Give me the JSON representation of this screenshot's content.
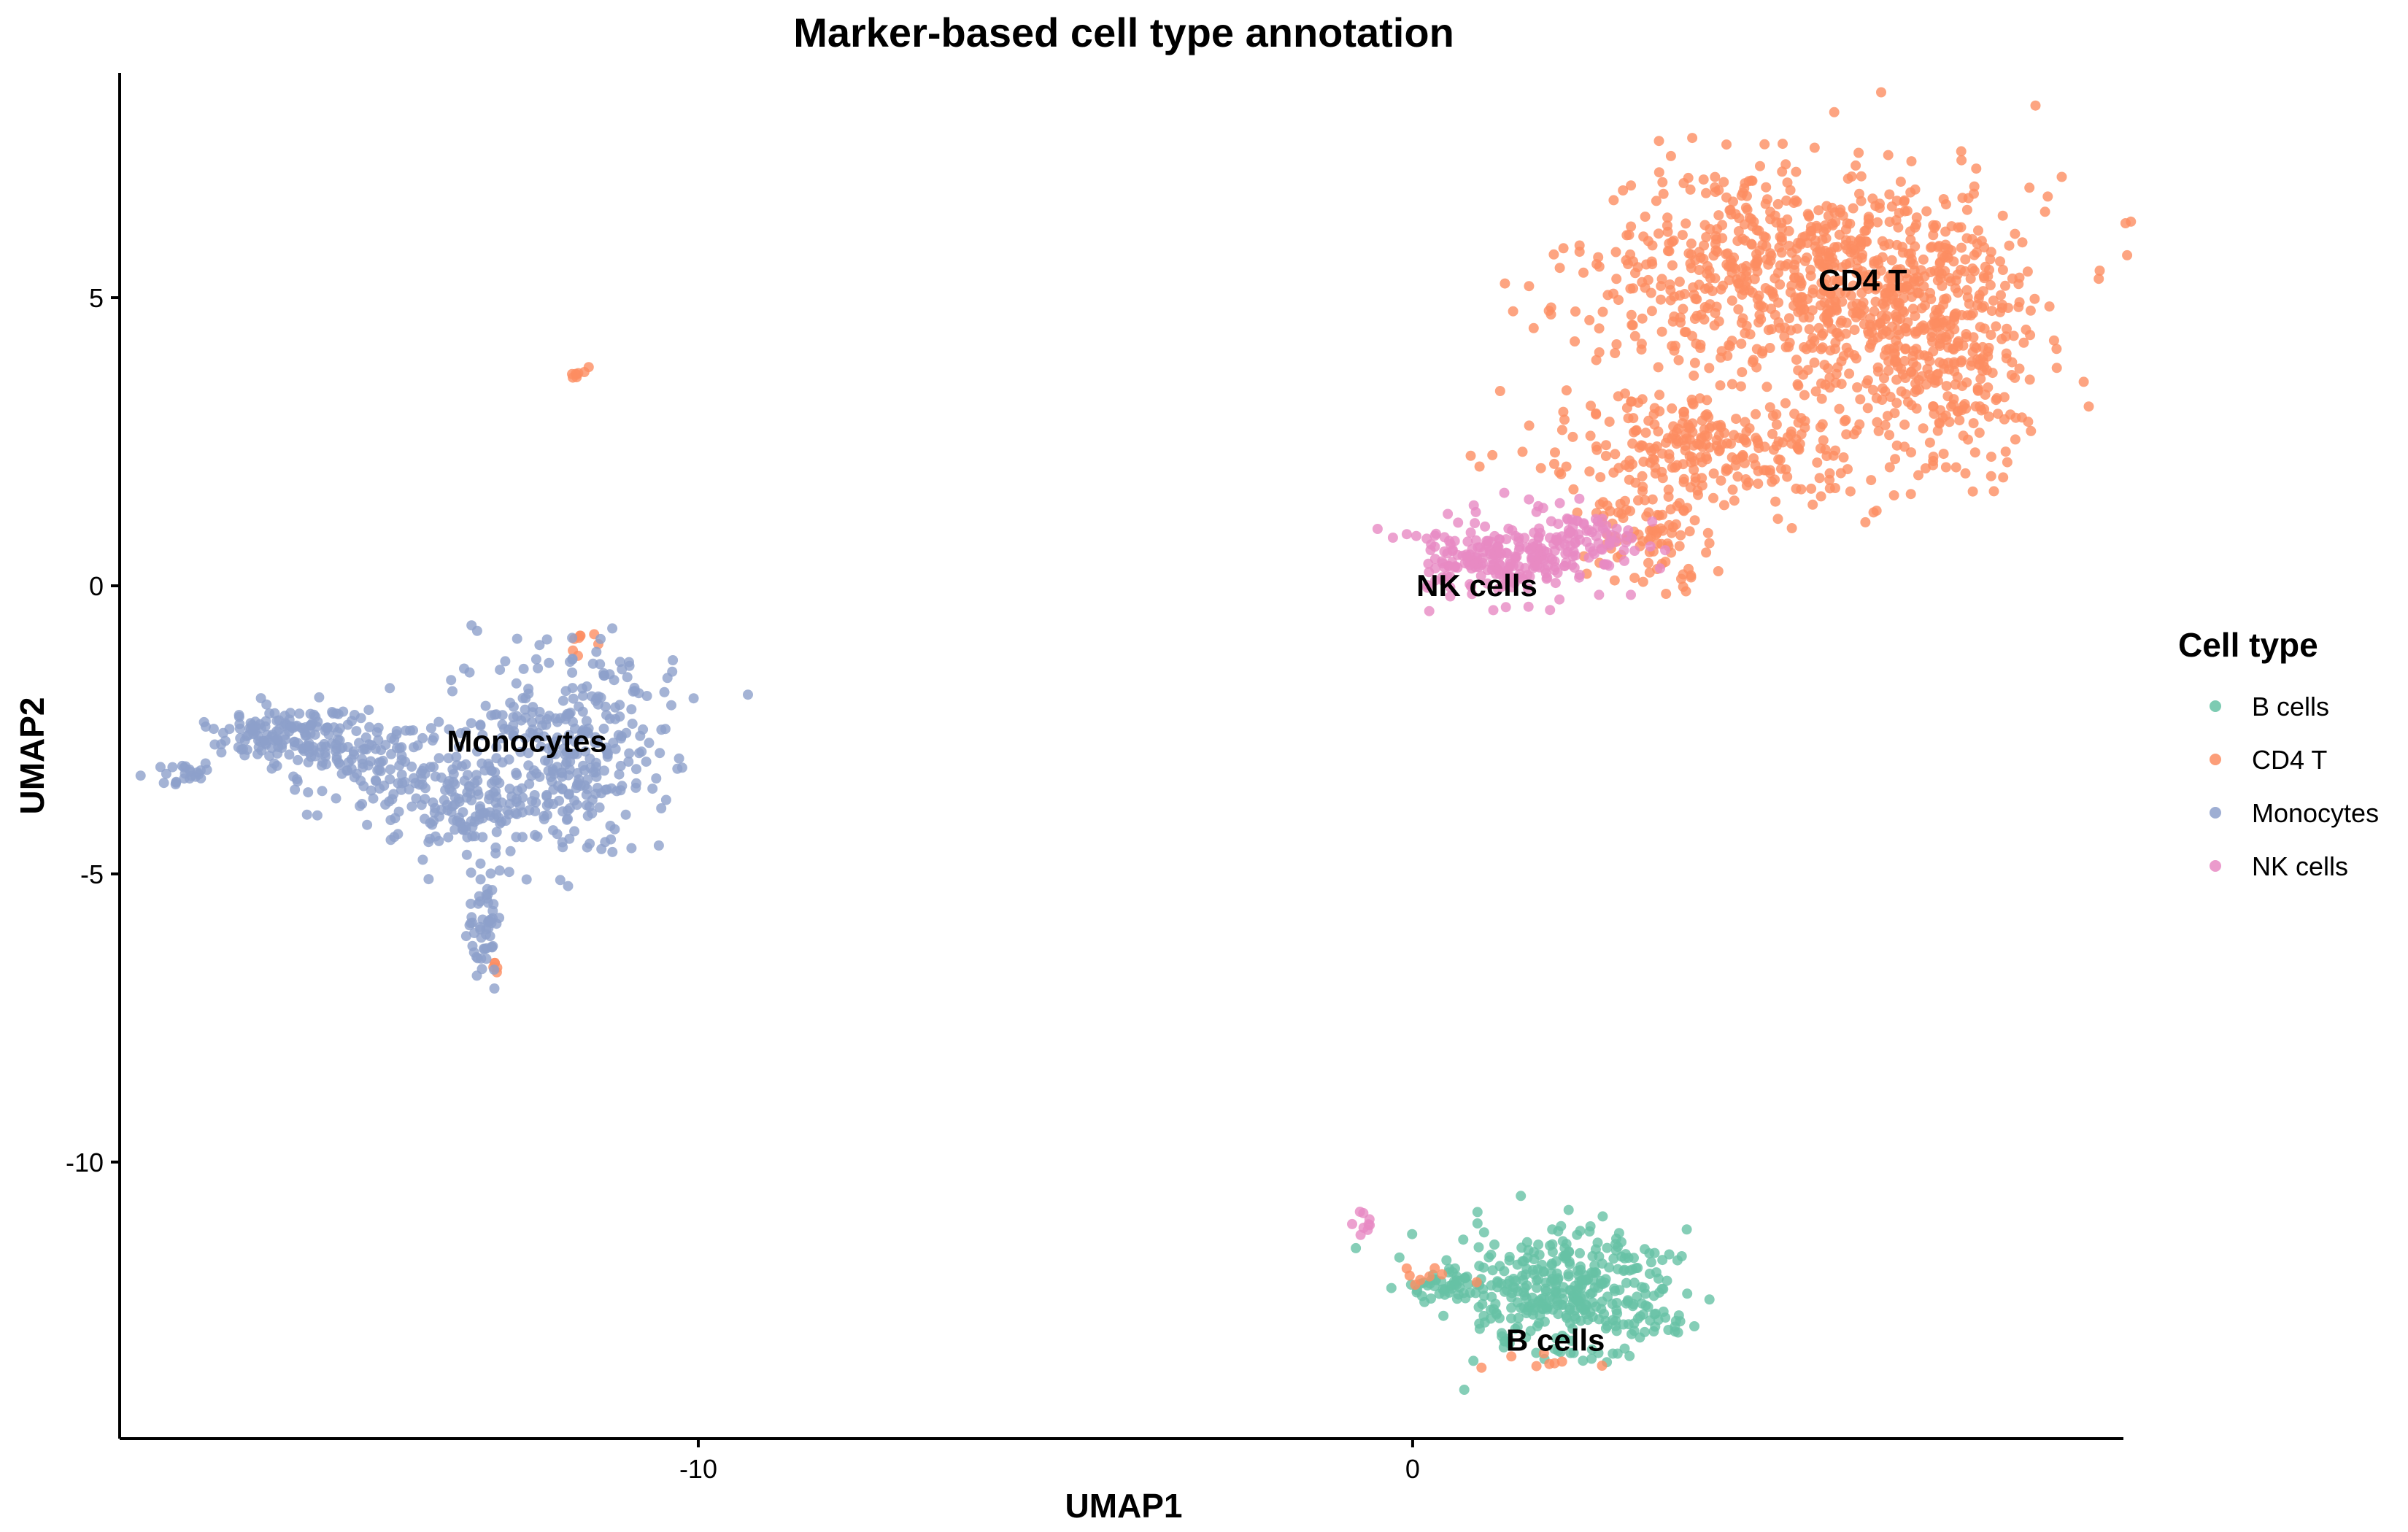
{
  "chart_data": {
    "type": "scatter",
    "title": "Marker-based cell type annotation",
    "xlabel": "UMAP1",
    "ylabel": "UMAP2",
    "xlim": [
      -18.1,
      9.95
    ],
    "ylim": [
      -14.8,
      8.9
    ],
    "x_ticks": [
      {
        "value": -10,
        "label": "-10"
      },
      {
        "value": 0,
        "label": "0"
      }
    ],
    "y_ticks": [
      {
        "value": 5,
        "label": "5"
      },
      {
        "value": 0,
        "label": "0"
      },
      {
        "value": -5,
        "label": "-5"
      },
      {
        "value": -10,
        "label": "-10"
      }
    ],
    "grid": false,
    "legend": {
      "title": "Cell type",
      "position": "right"
    },
    "series": [
      {
        "name": "B cells",
        "color": "#66c2a5",
        "n_points": 420,
        "regions": [
          {
            "cx": 2.2,
            "cy": -12.3,
            "sx": 0.75,
            "sy": 0.55,
            "w": 0.88
          },
          {
            "cx": 0.6,
            "cy": -12.2,
            "sx": 0.35,
            "sy": 0.15,
            "w": 0.12
          }
        ]
      },
      {
        "name": "CD4 T",
        "color": "#fc8d62",
        "n_points": 1500,
        "regions": [
          {
            "cx": 5.5,
            "cy": 5.4,
            "sx": 1.45,
            "sy": 1.0,
            "w": 0.5
          },
          {
            "cx": 7.3,
            "cy": 4.2,
            "sx": 0.65,
            "sy": 1.2,
            "w": 0.22
          },
          {
            "cx": 4.2,
            "cy": 2.4,
            "sx": 1.1,
            "sy": 0.55,
            "w": 0.18
          },
          {
            "cx": 3.2,
            "cy": 1.0,
            "sx": 0.45,
            "sy": 0.45,
            "w": 0.06
          },
          {
            "cx": -11.7,
            "cy": 3.7,
            "sx": 0.08,
            "sy": 0.08,
            "w": 0.005
          },
          {
            "cx": 2.0,
            "cy": -13.5,
            "sx": 0.5,
            "sy": 0.1,
            "w": 0.005
          },
          {
            "cx": 0.4,
            "cy": -12.0,
            "sx": 0.2,
            "sy": 0.1,
            "w": 0.005
          },
          {
            "cx": -11.6,
            "cy": -1.0,
            "sx": 0.1,
            "sy": 0.15,
            "w": 0.005
          },
          {
            "cx": -12.8,
            "cy": -6.6,
            "sx": 0.1,
            "sy": 0.05,
            "w": 0.003
          }
        ]
      },
      {
        "name": "Monocytes",
        "color": "#8da0cb",
        "n_points": 800,
        "regions": [
          {
            "cx": -11.8,
            "cy": -2.8,
            "sx": 0.75,
            "sy": 0.9,
            "w": 0.38
          },
          {
            "cx": -13.2,
            "cy": -3.7,
            "sx": 0.9,
            "sy": 0.45,
            "w": 0.22
          },
          {
            "cx": -15.7,
            "cy": -2.6,
            "sx": 0.55,
            "sy": 0.25,
            "w": 0.2
          },
          {
            "cx": -14.5,
            "cy": -3.1,
            "sx": 0.6,
            "sy": 0.35,
            "w": 0.1
          },
          {
            "cx": -17.2,
            "cy": -3.3,
            "sx": 0.25,
            "sy": 0.1,
            "w": 0.03
          },
          {
            "cx": -13.0,
            "cy": -5.8,
            "sx": 0.12,
            "sy": 0.45,
            "w": 0.07
          }
        ]
      },
      {
        "name": "NK cells",
        "color": "#e78ac3",
        "n_points": 300,
        "regions": [
          {
            "cx": 1.2,
            "cy": 0.5,
            "sx": 0.55,
            "sy": 0.35,
            "w": 0.7
          },
          {
            "cx": 2.4,
            "cy": 0.8,
            "sx": 0.5,
            "sy": 0.3,
            "w": 0.27
          },
          {
            "cx": -0.7,
            "cy": -11.1,
            "sx": 0.1,
            "sy": 0.1,
            "w": 0.03
          }
        ]
      }
    ],
    "annotations": [
      {
        "text": "CD4 T",
        "x": 6.3,
        "y": 5.3
      },
      {
        "text": "NK cells",
        "x": 0.9,
        "y": 0.0
      },
      {
        "text": "Monocytes",
        "x": -12.4,
        "y": -2.7
      },
      {
        "text": "B cells",
        "x": 2.0,
        "y": -13.1
      }
    ]
  }
}
